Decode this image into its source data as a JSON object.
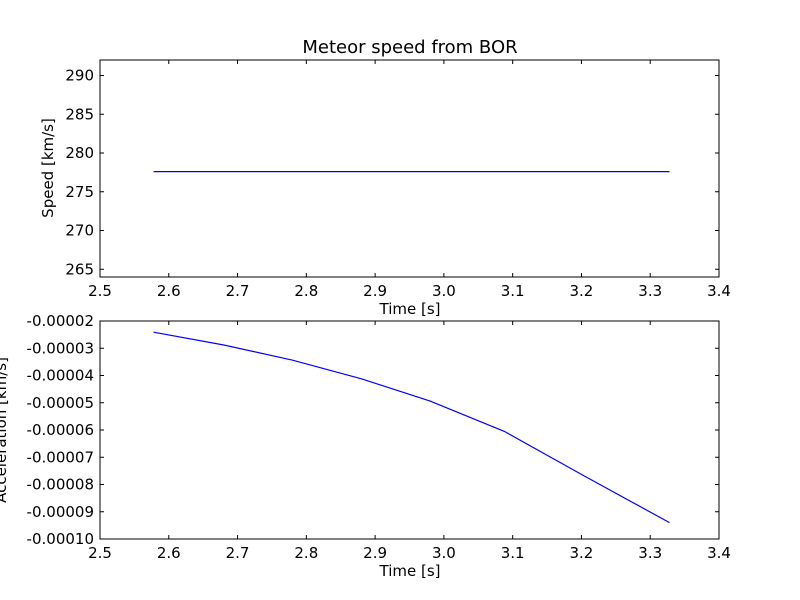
{
  "chart_data": [
    {
      "type": "line",
      "title": "Meteor speed from  BOR",
      "xlabel": "Time [s]",
      "ylabel": "Speed [km/s]",
      "xlim": [
        2.5,
        3.4
      ],
      "ylim": [
        264,
        292
      ],
      "xticks": [
        "2.5",
        "2.6",
        "2.7",
        "2.8",
        "2.9",
        "3.0",
        "3.1",
        "3.2",
        "3.3",
        "3.4"
      ],
      "yticks": [
        "265",
        "270",
        "275",
        "280",
        "285",
        "290"
      ],
      "grid": false,
      "line_color": "#0000ff",
      "series": [
        {
          "x": [
            2.578,
            3.328
          ],
          "y": [
            277.6,
            277.6
          ]
        }
      ]
    },
    {
      "type": "line",
      "title": "",
      "xlabel": "Time [s]",
      "ylabel": "Acceleration [km/s]",
      "xlim": [
        2.5,
        3.4
      ],
      "ylim": [
        -0.0001,
        -2e-05
      ],
      "xticks": [
        "2.5",
        "2.6",
        "2.7",
        "2.8",
        "2.9",
        "3.0",
        "3.1",
        "3.2",
        "3.3",
        "3.4"
      ],
      "yticks": [
        "-0.00002",
        "-0.00003",
        "-0.00004",
        "-0.00005",
        "-0.00006",
        "-0.00007",
        "-0.00008",
        "-0.00009",
        "-0.00010"
      ],
      "grid": false,
      "line_color": "#0000ff",
      "series": [
        {
          "x": [
            2.578,
            2.68,
            2.78,
            2.88,
            2.98,
            3.088,
            3.2,
            3.328
          ],
          "y": [
            -2.41e-05,
            -2.88e-05,
            -3.44e-05,
            -4.12e-05,
            -4.94e-05,
            -6.05e-05,
            -7.63e-05,
            -9.4e-05
          ]
        }
      ]
    }
  ]
}
